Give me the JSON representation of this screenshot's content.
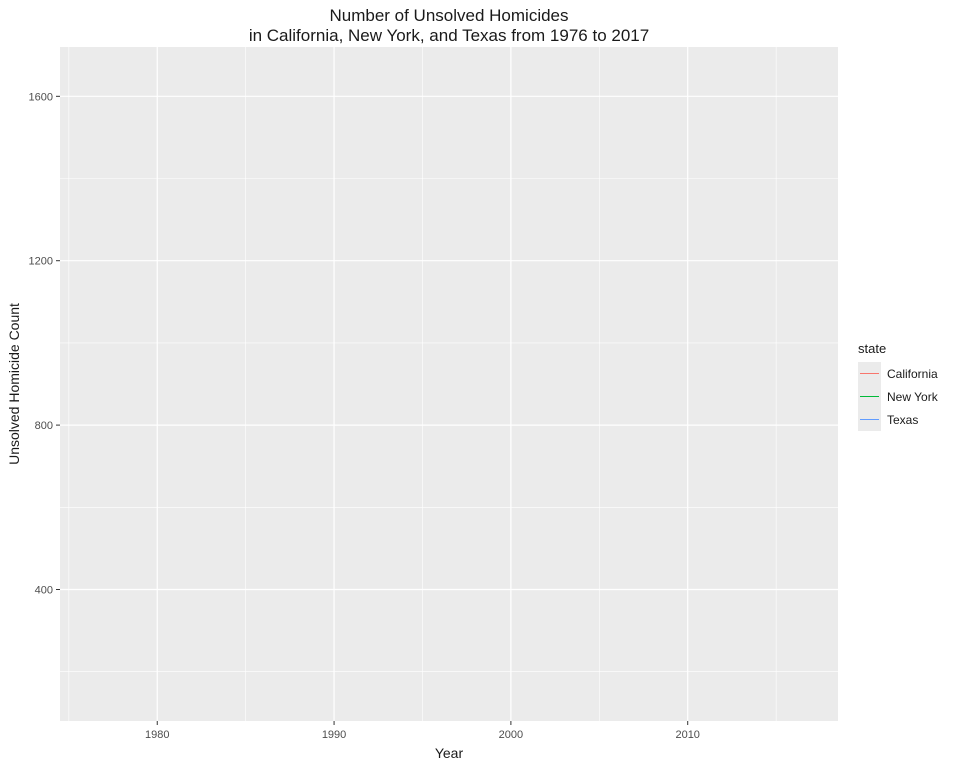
{
  "chart_data": {
    "type": "line",
    "title": "Number of Unsolved Homicides",
    "subtitle": "in California, New York, and Texas from 1976 to 2017",
    "xlabel": "Year",
    "ylabel": "Unsolved Homicide Count",
    "xlim": [
      1974.5,
      2018.5
    ],
    "ylim": [
      80,
      1720
    ],
    "x_ticks": [
      1980,
      1990,
      2000,
      2010
    ],
    "x_minor_ticks": [
      1975,
      1985,
      1995,
      2005,
      2015
    ],
    "y_ticks": [
      400,
      800,
      1200,
      1600
    ],
    "y_minor_ticks": [
      200,
      600,
      1000,
      1400
    ],
    "grid": true,
    "legend": {
      "title": "state",
      "placement": "right",
      "entries": [
        {
          "name": "California",
          "color": "#F8766D"
        },
        {
          "name": "New York",
          "color": "#00BA38"
        },
        {
          "name": "Texas",
          "color": "#619CFF"
        }
      ]
    },
    "series": [
      {
        "name": "California",
        "color": "#F8766D",
        "x": [],
        "values": []
      },
      {
        "name": "New York",
        "color": "#00BA38",
        "x": [],
        "values": []
      },
      {
        "name": "Texas",
        "color": "#619CFF",
        "x": [],
        "values": []
      }
    ]
  }
}
